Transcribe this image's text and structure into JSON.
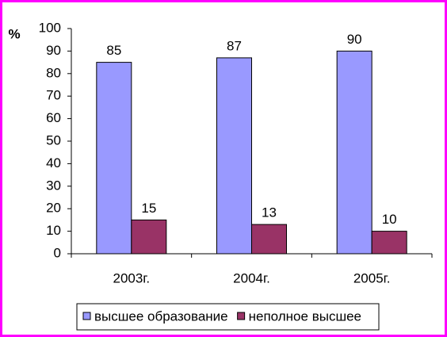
{
  "chart_data": {
    "type": "bar",
    "y_label": "%",
    "categories": [
      "2003г.",
      "2004г.",
      "2005г."
    ],
    "series": [
      {
        "name": "высшее образование",
        "color": "#9999ff",
        "values": [
          85,
          87,
          90
        ]
      },
      {
        "name": "неполное высшее",
        "color": "#993366",
        "values": [
          15,
          13,
          10
        ]
      }
    ],
    "ylim": [
      0,
      100
    ],
    "yticks": [
      0,
      10,
      20,
      30,
      40,
      50,
      60,
      70,
      80,
      90,
      100
    ],
    "legend": "bottom"
  }
}
